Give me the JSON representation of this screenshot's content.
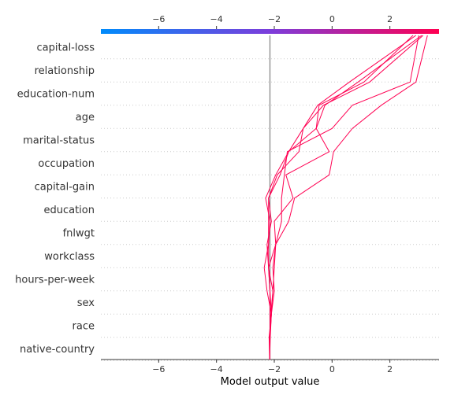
{
  "chart_data": {
    "type": "line",
    "title": "",
    "xlabel": "Model output value",
    "ylabel": "",
    "xlim": [
      -8,
      3.7
    ],
    "xticks": [
      -6,
      -4,
      -2,
      0,
      2
    ],
    "xtick_labels": [
      "−6",
      "−4",
      "−2",
      "0",
      "2"
    ],
    "base_value": -2.15,
    "features": [
      "capital-loss",
      "relationship",
      "education-num",
      "age",
      "marital-status",
      "occupation",
      "capital-gain",
      "education",
      "fnlwgt",
      "workclass",
      "hours-per-week",
      "sex",
      "race",
      "native-country"
    ],
    "colorbar": {
      "low_color": "#008bfb",
      "mid_color": "#7c3ddb",
      "high_color": "#ff0052"
    },
    "line_color": "#ff0052",
    "grid": true,
    "series": [
      {
        "values": [
          -2.16,
          -2.14,
          -2.1,
          -2.15,
          -2.2,
          -1.95,
          -1.75,
          -1.75,
          -1.65,
          -1.55,
          0.0,
          0.7,
          2.7,
          3.0
        ]
      },
      {
        "values": [
          -2.16,
          -2.16,
          -2.1,
          -2.0,
          -2.05,
          -1.95,
          -1.5,
          -1.3,
          -0.1,
          0.05,
          0.7,
          1.7,
          2.9,
          3.3
        ]
      },
      {
        "values": [
          -2.16,
          -2.16,
          -2.12,
          -2.05,
          -2.0,
          -1.95,
          -2.0,
          -1.35,
          -1.6,
          -0.1,
          -0.55,
          -0.25,
          0.9,
          3.1
        ]
      },
      {
        "values": [
          -2.16,
          -2.15,
          -2.1,
          -2.05,
          -2.2,
          -2.2,
          -2.2,
          -2.2,
          -1.8,
          -1.5,
          -0.55,
          -0.45,
          1.1,
          2.8
        ]
      },
      {
        "values": [
          -2.16,
          -2.15,
          -2.15,
          -2.15,
          -2.2,
          -2.25,
          -2.1,
          -2.2,
          -1.9,
          -1.15,
          -1.0,
          -0.3,
          1.3,
          3.15
        ]
      },
      {
        "values": [
          -2.16,
          -2.18,
          -2.1,
          -2.25,
          -2.35,
          -2.2,
          -2.15,
          -2.3,
          -1.95,
          -1.5,
          -1.0,
          -0.5,
          0.6,
          2.9
        ]
      }
    ]
  }
}
